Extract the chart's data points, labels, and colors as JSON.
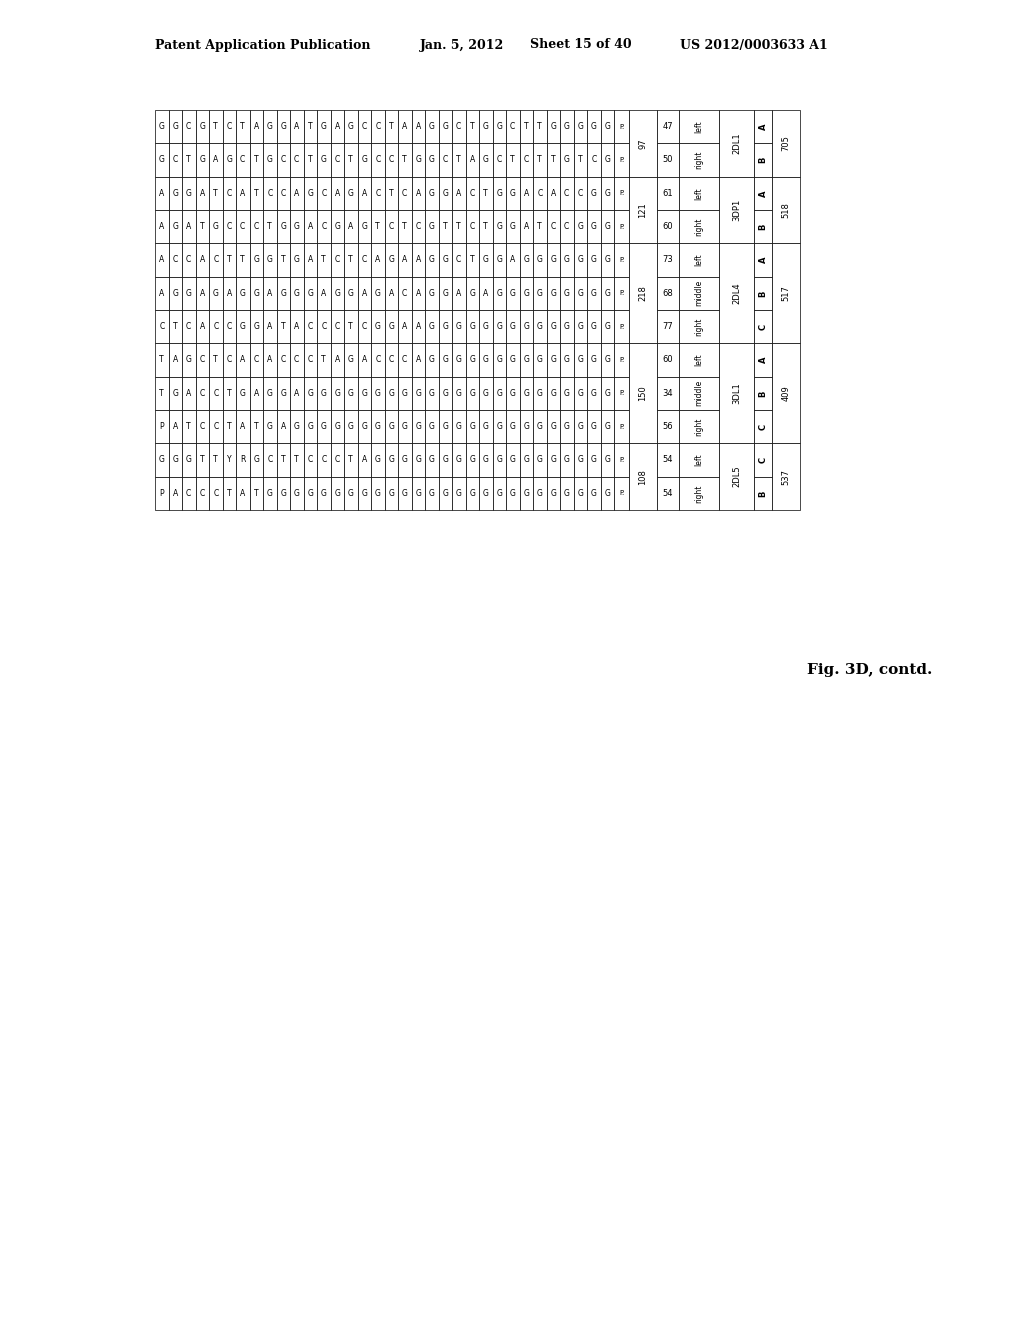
{
  "header_left": "Patent Application Publication",
  "header_date": "Jan. 5, 2012",
  "header_sheet": "Sheet 15 of 40",
  "header_right": "US 2012/0003633 A1",
  "figure_label": "Fig. 3D, contd.",
  "table": {
    "seq_cols": [
      "G",
      "G",
      "C",
      "G",
      "T",
      "C",
      "T",
      "A",
      "G",
      "G",
      "A",
      "T",
      "G",
      "A",
      "G",
      "C",
      "C",
      "T",
      "A",
      "A",
      "G",
      "G",
      "C",
      "T",
      "G",
      "G",
      "C",
      "T",
      "T",
      "G",
      "G",
      "G",
      "G",
      "G",
      "P",
      "97",
      "47",
      "left",
      "2DL1",
      "A",
      "705"
    ],
    "rows": [
      {
        "seq": [
          "G",
          "G",
          "C",
          "G",
          "T",
          "C",
          "T",
          "A",
          "G",
          "G",
          "A",
          "T",
          "G",
          "A",
          "G",
          "C",
          "C",
          "T",
          "A",
          "A",
          "G",
          "G",
          "C",
          "T",
          "G",
          "G",
          "C",
          "T",
          "T",
          "G",
          "G",
          "G",
          "G",
          "G",
          "P."
        ],
        "pos": "97",
        "offset": "47",
        "side": "left",
        "gene": "2DL1",
        "allele": "A",
        "id": "705"
      },
      {
        "seq": [
          "G",
          "C",
          "T",
          "G",
          "A",
          "G",
          "C",
          "T",
          "G",
          "C",
          "C",
          "T",
          "G",
          "C",
          "T",
          "G",
          "C",
          "C",
          "T",
          "G",
          "G",
          "C",
          "T",
          "A",
          "G",
          "C",
          "T",
          "C",
          "T",
          "T",
          "G",
          "T",
          "C",
          "G",
          "P."
        ],
        "pos": "97",
        "offset": "50",
        "side": "right",
        "gene": "2DL1",
        "allele": "B",
        "id": "705"
      },
      {
        "seq": [
          "A",
          "G",
          "G",
          "A",
          "T",
          "C",
          "A",
          "T",
          "C",
          "C",
          "A",
          "G",
          "C",
          "A",
          "G",
          "A",
          "C",
          "T",
          "C",
          "A",
          "G",
          "G",
          "A",
          "C",
          "T",
          "G",
          "G",
          "A",
          "C",
          "A",
          "C",
          "C",
          "G",
          "G",
          "P."
        ],
        "pos": "121",
        "offset": "61",
        "side": "left",
        "gene": "3DP1",
        "allele": "A",
        "id": "518"
      },
      {
        "seq": [
          "A",
          "G",
          "A",
          "T",
          "G",
          "C",
          "C",
          "C",
          "T",
          "G",
          "G",
          "A",
          "C",
          "G",
          "A",
          "G",
          "T",
          "C",
          "T",
          "C",
          "G",
          "T",
          "T",
          "C",
          "T",
          "G",
          "G",
          "A",
          "T",
          "C",
          "C",
          "G",
          "G",
          "G",
          "P."
        ],
        "pos": "121",
        "offset": "60",
        "side": "right",
        "gene": "3DP1",
        "allele": "B",
        "id": "518"
      },
      {
        "seq": [
          "A",
          "C",
          "C",
          "A",
          "C",
          "T",
          "T",
          "G",
          "G",
          "T",
          "G",
          "A",
          "T",
          "C",
          "T",
          "C",
          "A",
          "G",
          "A",
          "A",
          "G",
          "G",
          "C",
          "T",
          "G",
          "G",
          "A",
          "G",
          "G",
          "G",
          "G",
          "G",
          "G",
          "G",
          "P."
        ],
        "pos": "218",
        "offset": "73",
        "side": "left",
        "gene": "2DL4",
        "allele": "A",
        "id": "517"
      },
      {
        "seq": [
          "",
          "",
          "",
          "",
          "",
          "",
          "",
          "",
          "",
          "",
          "",
          "",
          "",
          "",
          "",
          "",
          "",
          "",
          "",
          "",
          "",
          "",
          "",
          "",
          "",
          "",
          "",
          "",
          "",
          "",
          "",
          "",
          "",
          "",
          ""
        ],
        "pos": "",
        "offset": "",
        "side": "",
        "gene": "",
        "allele": "",
        "id": ""
      },
      {
        "seq": [
          "A",
          "G",
          "G",
          "A",
          "G",
          "A",
          "G",
          "G",
          "A",
          "G",
          "G",
          "G",
          "A",
          "G",
          "G",
          "A",
          "G",
          "A",
          "C",
          "A",
          "G",
          "G",
          "A",
          "G",
          "A",
          "G",
          "G",
          "G",
          "G",
          "G",
          "G",
          "G",
          "G",
          "G",
          "P."
        ],
        "pos": "218",
        "offset": "68",
        "side": "middle",
        "gene": "2DL4",
        "allele": "B",
        "id": "517"
      },
      {
        "seq": [
          "",
          "",
          "",
          "",
          "",
          "",
          "",
          "",
          "",
          "",
          "",
          "",
          "",
          "",
          "",
          "",
          "",
          "",
          "",
          "",
          "",
          "",
          "",
          "",
          "",
          "",
          "",
          "",
          "",
          "",
          "",
          "",
          "",
          "",
          ""
        ],
        "pos": "",
        "offset": "",
        "side": "",
        "gene": "",
        "allele": "",
        "id": ""
      },
      {
        "seq": [
          "C",
          "T",
          "C",
          "A",
          "C",
          "C",
          "G",
          "G",
          "A",
          "T",
          "A",
          "C",
          "C",
          "C",
          "T",
          "C",
          "G",
          "G",
          "A",
          "A",
          "G",
          "G",
          "G",
          "G",
          "G",
          "G",
          "G",
          "G",
          "G",
          "G",
          "G",
          "G",
          "G",
          "G",
          "P."
        ],
        "pos": "218",
        "offset": "77",
        "side": "right",
        "gene": "2DL4",
        "allele": "C",
        "id": "517"
      },
      {
        "seq": [
          "",
          "",
          "",
          "",
          "",
          "",
          "",
          "",
          "",
          "",
          "",
          "",
          "",
          "",
          "",
          "",
          "",
          "",
          "",
          "",
          "",
          "",
          "",
          "",
          "",
          "",
          "",
          "",
          "",
          "",
          "",
          "",
          "",
          "",
          ""
        ],
        "pos": "",
        "offset": "",
        "side": "",
        "gene": "",
        "allele": "",
        "id": ""
      },
      {
        "seq": [
          "T",
          "A",
          "G",
          "C",
          "T",
          "C",
          "A",
          "C",
          "A",
          "C",
          "C",
          "C",
          "T",
          "A",
          "G",
          "A",
          "C",
          "C",
          "C",
          "A",
          "G",
          "G",
          "G",
          "G",
          "G",
          "G",
          "G",
          "G",
          "G",
          "G",
          "G",
          "G",
          "G",
          "G",
          "P."
        ],
        "pos": "150",
        "offset": "60",
        "side": "left",
        "gene": "3DL1",
        "allele": "A",
        "id": "409"
      },
      {
        "seq": [
          "",
          "",
          "",
          "",
          "",
          "",
          "",
          "",
          "",
          "",
          "",
          "",
          "",
          "",
          "",
          "",
          "",
          "",
          "",
          "",
          "",
          "",
          "",
          "",
          "",
          "",
          "",
          "",
          "",
          "",
          "",
          "",
          "",
          "",
          ""
        ],
        "pos": "",
        "offset": "",
        "side": "",
        "gene": "",
        "allele": "",
        "id": ""
      },
      {
        "seq": [
          "T",
          "G",
          "A",
          "C",
          "C",
          "T",
          "G",
          "A",
          "G",
          "G",
          "A",
          "G",
          "G",
          "G",
          "G",
          "G",
          "G",
          "G",
          "G",
          "G",
          "G",
          "G",
          "G",
          "G",
          "G",
          "G",
          "G",
          "G",
          "G",
          "G",
          "G",
          "G",
          "G",
          "G",
          "P."
        ],
        "pos": "150",
        "offset": "34",
        "side": "middle",
        "gene": "3DL1",
        "allele": "B",
        "id": "409"
      },
      {
        "seq": [
          "",
          "",
          "",
          "",
          "",
          "",
          "",
          "",
          "",
          "",
          "",
          "",
          "",
          "",
          "",
          "",
          "",
          "",
          "",
          "",
          "",
          "",
          "",
          "",
          "",
          "",
          "",
          "",
          "",
          "",
          "",
          "",
          "",
          "",
          ""
        ],
        "pos": "",
        "offset": "",
        "side": "",
        "gene": "",
        "allele": "",
        "id": ""
      },
      {
        "seq": [
          "P",
          "A",
          "T",
          "C",
          "C",
          "T",
          "A",
          "T",
          "G",
          "A",
          "G",
          "G",
          "G",
          "G",
          "G",
          "G",
          "G",
          "G",
          "G",
          "G",
          "G",
          "G",
          "G",
          "G",
          "G",
          "G",
          "G",
          "G",
          "G",
          "G",
          "G",
          "G",
          "G",
          "G",
          "P."
        ],
        "pos": "150",
        "offset": "56",
        "side": "right",
        "gene": "3DL1",
        "allele": "C",
        "id": "409"
      },
      {
        "seq": [
          "",
          "",
          "",
          "",
          "",
          "",
          "",
          "",
          "",
          "",
          "",
          "",
          "",
          "",
          "",
          "",
          "",
          "",
          "",
          "",
          "",
          "",
          "",
          "",
          "",
          "",
          "",
          "",
          "",
          "",
          "",
          "",
          "",
          "",
          ""
        ],
        "pos": "",
        "offset": "",
        "side": "",
        "gene": "",
        "allele": "",
        "id": ""
      },
      {
        "seq": [
          "G",
          "G",
          "G",
          "T",
          "T",
          "Y",
          "R",
          "G",
          "C",
          "T",
          "T",
          "C",
          "C",
          "C",
          "T",
          "A",
          "G",
          "G",
          "G",
          "G",
          "G",
          "G",
          "G",
          "G",
          "G",
          "G",
          "G",
          "G",
          "G",
          "G",
          "G",
          "G",
          "G",
          "G",
          "P."
        ],
        "pos": "108",
        "offset": "54",
        "side": "left",
        "gene": "2DL5",
        "allele": "C",
        "id": "537"
      },
      {
        "seq": [
          "",
          "",
          "",
          "",
          "",
          "",
          "",
          "",
          "",
          "",
          "",
          "",
          "",
          "",
          "",
          "",
          "",
          "",
          "",
          "",
          "",
          "",
          "",
          "",
          "",
          "",
          "",
          "",
          "",
          "",
          "",
          "",
          "",
          "",
          ""
        ],
        "pos": "",
        "offset": "",
        "side": "",
        "gene": "",
        "allele": "",
        "id": ""
      },
      {
        "seq": [
          "P",
          "A",
          "C",
          "C",
          "C",
          "T",
          "A",
          "T",
          "G",
          "G",
          "G",
          "G",
          "G",
          "G",
          "G",
          "G",
          "G",
          "G",
          "G",
          "G",
          "G",
          "G",
          "G",
          "G",
          "G",
          "G",
          "G",
          "G",
          "G",
          "G",
          "G",
          "G",
          "G",
          "G",
          "P."
        ],
        "pos": "108",
        "offset": "54",
        "side": "right",
        "gene": "2DL5",
        "allele": "B",
        "id": "537"
      }
    ]
  },
  "bg_color": "#ffffff",
  "border_color": "#000000",
  "text_color": "#000000",
  "header_font_size": 10,
  "cell_font_size": 6.5
}
